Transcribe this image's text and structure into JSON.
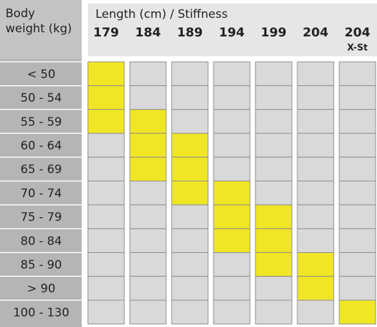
{
  "header": {
    "weight_title": "Body weight (kg)",
    "length_title": "Length (cm) / Stiffness"
  },
  "columns": [
    {
      "length": "179"
    },
    {
      "length": "184"
    },
    {
      "length": "189"
    },
    {
      "length": "194"
    },
    {
      "length": "199"
    },
    {
      "length": "204"
    },
    {
      "length": "204",
      "stiffness": "X-St"
    }
  ],
  "rows": [
    {
      "weight": "< 50",
      "cells": [
        true,
        false,
        false,
        false,
        false,
        false,
        false
      ]
    },
    {
      "weight": "50 - 54",
      "cells": [
        true,
        false,
        false,
        false,
        false,
        false,
        false
      ]
    },
    {
      "weight": "55 - 59",
      "cells": [
        true,
        true,
        false,
        false,
        false,
        false,
        false
      ]
    },
    {
      "weight": "60 - 64",
      "cells": [
        false,
        true,
        true,
        false,
        false,
        false,
        false
      ]
    },
    {
      "weight": "65 - 69",
      "cells": [
        false,
        true,
        true,
        false,
        false,
        false,
        false
      ]
    },
    {
      "weight": "70 - 74",
      "cells": [
        false,
        false,
        true,
        true,
        false,
        false,
        false
      ]
    },
    {
      "weight": "75 - 79",
      "cells": [
        false,
        false,
        false,
        true,
        true,
        false,
        false
      ]
    },
    {
      "weight": "80 - 84",
      "cells": [
        false,
        false,
        false,
        true,
        true,
        false,
        false
      ]
    },
    {
      "weight": "85 - 90",
      "cells": [
        false,
        false,
        false,
        false,
        true,
        true,
        false
      ]
    },
    {
      "weight": "> 90",
      "cells": [
        false,
        false,
        false,
        false,
        false,
        true,
        false
      ]
    },
    {
      "weight": "100 - 130",
      "cells": [
        false,
        false,
        false,
        false,
        false,
        false,
        true
      ]
    }
  ],
  "highlight_color": "#f0e626",
  "cell_color": "#d9d9d9"
}
